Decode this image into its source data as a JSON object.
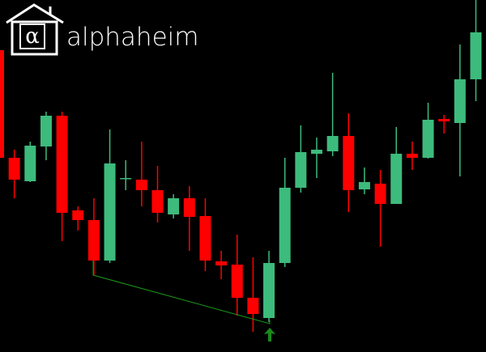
{
  "logo_text": "alphaheim",
  "chart_data": {
    "type": "candlestick",
    "up_color": "#3dbb7c",
    "down_color": "#ff0000",
    "ylim": [
      0,
      435
    ],
    "open": [
      373,
      240,
      211,
      254,
      292,
      175,
      163,
      113,
      214,
      213,
      200,
      170,
      190,
      168,
      112,
      108,
      67,
      42,
      110,
      203,
      245,
      248,
      267,
      201,
      208,
      183,
      245,
      240,
      288,
      283,
      337
    ],
    "high": [
      373,
      250,
      260,
      297,
      297,
      180,
      190,
      275,
      237,
      260,
      230,
      195,
      205,
      190,
      125,
      145,
      117,
      125,
      240,
      280,
      265,
      345,
      295,
      228,
      225,
      278,
      260,
      308,
      293,
      380,
      435
    ],
    "low": [
      240,
      190,
      210,
      237,
      137,
      150,
      95,
      110,
      200,
      180,
      160,
      165,
      125,
      100,
      90,
      45,
      25,
      37,
      105,
      197,
      215,
      242,
      173,
      195,
      130,
      183,
      225,
      239,
      270,
      217,
      310
    ],
    "close": [
      240,
      213,
      255,
      292,
      172,
      163,
      113,
      233,
      215,
      200,
      172,
      190,
      167,
      113,
      107,
      67,
      47,
      110,
      203,
      247,
      250,
      267,
      200,
      210,
      183,
      245,
      240,
      287,
      285,
      337,
      395
    ]
  }
}
